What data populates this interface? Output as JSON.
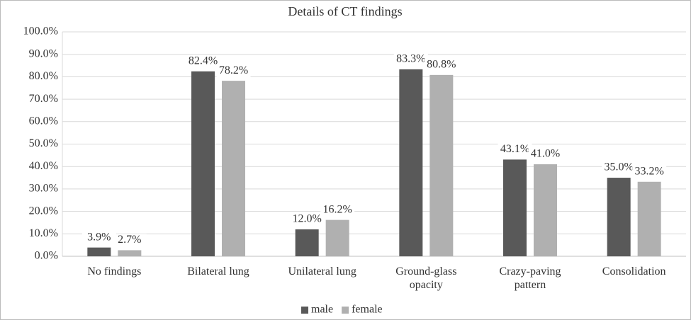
{
  "chart_data": {
    "type": "bar",
    "title": "Details of CT findings",
    "categories": [
      "No findings",
      "Bilateral lung",
      "Unilateral lung",
      "Ground-glass opacity",
      "Crazy-paving pattern",
      "Consolidation"
    ],
    "series": [
      {
        "name": "male",
        "color": "#595959",
        "values": [
          3.9,
          82.4,
          12.0,
          83.3,
          43.1,
          35.0
        ],
        "value_labels": [
          "3.9%",
          "82.4%",
          "12.0%",
          "83.3%",
          "43.1%",
          "35.0%"
        ]
      },
      {
        "name": "female",
        "color": "#b0b0b0",
        "values": [
          2.7,
          78.2,
          16.2,
          80.8,
          41.0,
          33.2
        ],
        "value_labels": [
          "2.7%",
          "78.2%",
          "16.2%",
          "80.8%",
          "41.0%",
          "33.2%"
        ]
      }
    ],
    "ylim": [
      0,
      100
    ],
    "yticks": [
      {
        "value": 0,
        "label": "0.0%"
      },
      {
        "value": 10,
        "label": "10.0%"
      },
      {
        "value": 20,
        "label": "20.0%"
      },
      {
        "value": 30,
        "label": "30.0%"
      },
      {
        "value": 40,
        "label": "40.0%"
      },
      {
        "value": 50,
        "label": "50.0%"
      },
      {
        "value": 60,
        "label": "60.0%"
      },
      {
        "value": 70,
        "label": "70.0%"
      },
      {
        "value": 80,
        "label": "80.0%"
      },
      {
        "value": 90,
        "label": "90.0%"
      },
      {
        "value": 100,
        "label": "100.0%"
      }
    ],
    "grid": true,
    "legend": "bottom"
  }
}
